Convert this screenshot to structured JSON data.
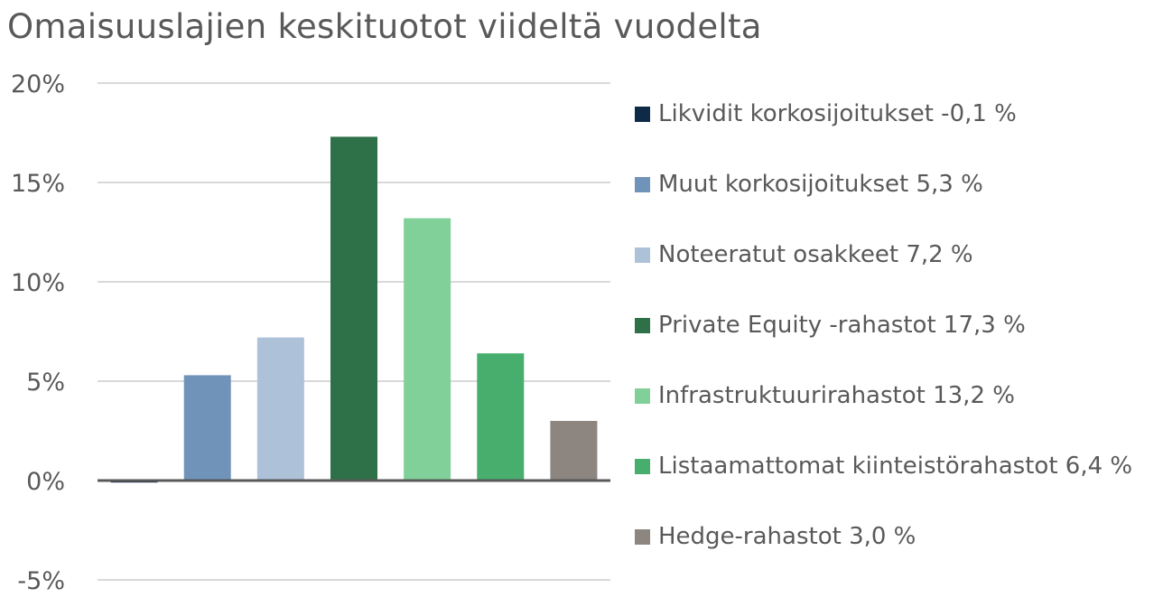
{
  "title": "Omaisuuslajien keskituotot viideltä vuodelta",
  "chart_data": {
    "type": "bar",
    "title": "Omaisuuslajien keskituotot viideltä vuodelta",
    "ylim": [
      -5,
      20
    ],
    "yticks": [
      -5,
      0,
      5,
      10,
      15,
      20
    ],
    "ytick_labels": [
      "-5%",
      "0%",
      "5%",
      "10%",
      "15%",
      "20%"
    ],
    "grid": true,
    "legend_position": "right",
    "categories": [
      "Likvidit korkosijoitukset",
      "Muut korkosijoitukset",
      "Noteeratut osakkeet",
      "Private Equity -rahastot",
      "Infrastruktuurirahastot",
      "Listaamattomat kiinteistörahastot",
      "Hedge-rahastot"
    ],
    "values": [
      -0.1,
      5.3,
      7.2,
      17.3,
      13.2,
      6.4,
      3.0
    ],
    "colors": [
      "#0e2a47",
      "#7093ba",
      "#adc2d9",
      "#2e7047",
      "#82d099",
      "#47ae6e",
      "#8c8580"
    ],
    "legend": [
      "Likvidit korkosijoitukset -0,1 %",
      "Muut korkosijoitukset 5,3 %",
      "Noteeratut osakkeet 7,2 %",
      "Private Equity -rahastot 17,3 %",
      "Infrastruktuurirahastot 13,2 %",
      "Listaamattomat kiinteistörahastot 6,4 %",
      "Hedge-rahastot 3,0 %"
    ]
  }
}
